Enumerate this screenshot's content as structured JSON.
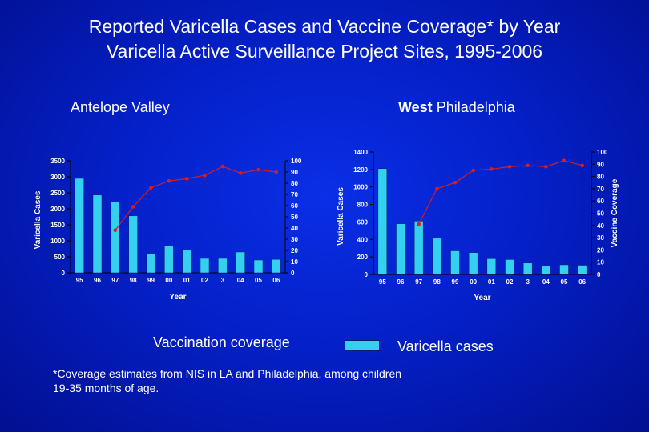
{
  "slide": {
    "title_line1": "Reported Varicella Cases and Vaccine Coverage* by Year",
    "title_line2": "Varicella Active Surveillance Project Sites, 1995-2006",
    "legend_coverage": "Vaccination coverage",
    "legend_cases": "Varicella cases",
    "footnote_line1": "*Coverage estimates from NIS in LA and Philadelphia, among children",
    "footnote_line2": "19-35 months of age.",
    "colors": {
      "bar": "#33d0ef",
      "line": "#d61e1e",
      "text": "#ffffff"
    }
  },
  "chart_data": [
    {
      "type": "bar",
      "title": "Antelope Valley",
      "categories": [
        "95",
        "96",
        "97",
        "98",
        "99",
        "00",
        "01",
        "02",
        "3",
        "04",
        "05",
        "06"
      ],
      "xlabel": "Year",
      "ylabel": "Varicella Cases",
      "y2label": "",
      "ylim": [
        0,
        3500
      ],
      "y_ticks": [
        0,
        500,
        1000,
        1500,
        2000,
        2500,
        3000,
        3500
      ],
      "y2lim": [
        0,
        100
      ],
      "y2_ticks": [
        0,
        10,
        20,
        30,
        40,
        50,
        60,
        70,
        80,
        90,
        100
      ],
      "series": [
        {
          "name": "Varicella cases",
          "type": "bar",
          "axis": "left",
          "values": [
            2950,
            2430,
            2220,
            1780,
            590,
            840,
            720,
            450,
            450,
            650,
            400,
            420
          ]
        },
        {
          "name": "Vaccination coverage",
          "type": "line",
          "axis": "right",
          "values": [
            null,
            null,
            38,
            59,
            76,
            82,
            84,
            87,
            95,
            89,
            92,
            90
          ]
        }
      ]
    },
    {
      "type": "bar",
      "title_bold": "West",
      "title_rest": " Philadelphia",
      "categories": [
        "95",
        "96",
        "97",
        "98",
        "99",
        "00",
        "01",
        "02",
        "3",
        "04",
        "05",
        "06"
      ],
      "xlabel": "Year",
      "ylabel": "Varicella Cases",
      "y2label": "Vaccine Coverage",
      "ylim": [
        0,
        1400
      ],
      "y_ticks": [
        0,
        200,
        400,
        600,
        800,
        1000,
        1200,
        1400
      ],
      "y2lim": [
        0,
        100
      ],
      "y2_ticks": [
        0,
        10,
        20,
        30,
        40,
        50,
        60,
        70,
        80,
        90,
        100
      ],
      "series": [
        {
          "name": "Varicella cases",
          "type": "bar",
          "axis": "left",
          "values": [
            1210,
            580,
            610,
            420,
            270,
            250,
            180,
            170,
            130,
            95,
            110,
            105
          ]
        },
        {
          "name": "Vaccination coverage",
          "type": "line",
          "axis": "right",
          "values": [
            null,
            null,
            41,
            70,
            75,
            85,
            86,
            88,
            89,
            88,
            93,
            89
          ]
        }
      ]
    }
  ]
}
